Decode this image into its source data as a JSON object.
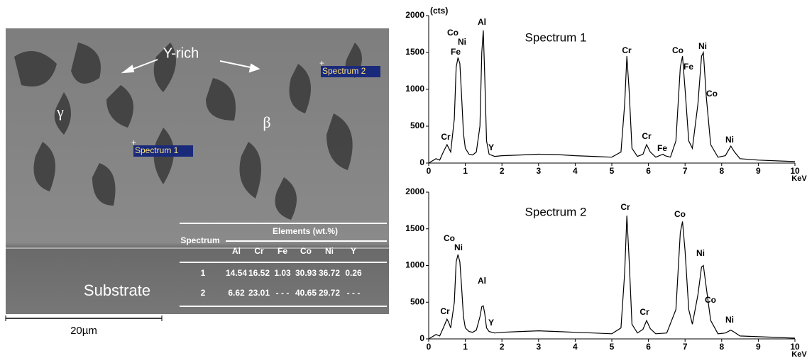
{
  "image": {
    "labels": {
      "y_rich": "Y-rich",
      "gamma": "γ",
      "beta": "β",
      "spectrum1": "Spectrum 1",
      "spectrum2": "Spectrum 2",
      "substrate": "Substrate"
    },
    "scale_bar": "20µm"
  },
  "table": {
    "header": "Elements (wt.%)",
    "row_header": "Spectrum",
    "columns": [
      "Al",
      "Cr",
      "Fe",
      "Co",
      "Ni",
      "Y"
    ],
    "rows": [
      [
        "1",
        14.54,
        16.52,
        1.03,
        30.93,
        36.72,
        0.26
      ],
      [
        "2",
        6.62,
        23.01,
        "- - -",
        40.65,
        29.72,
        "- - -"
      ]
    ]
  },
  "chart_data": [
    {
      "type": "line",
      "title": "Spectrum 1",
      "y_label": "(cts)",
      "x_label": "KeV",
      "color": "#000000",
      "xlim": [
        0,
        10
      ],
      "xticks": [
        0,
        1,
        2,
        3,
        4,
        5,
        6,
        7,
        8,
        9,
        10
      ],
      "ylim": [
        0,
        2000
      ],
      "yticks": [
        0,
        500,
        1000,
        1500,
        2000
      ],
      "annotations": [
        "Co",
        "Ni",
        "Fe",
        "Al",
        "Cr",
        "Y",
        "Cr",
        "Cr",
        "Fe",
        "Co",
        "Fe",
        "Ni",
        "Co",
        "Ni"
      ],
      "x": [
        0,
        0.1,
        0.2,
        0.3,
        0.4,
        0.5,
        0.55,
        0.6,
        0.7,
        0.75,
        0.8,
        0.85,
        0.9,
        0.95,
        1.0,
        1.1,
        1.2,
        1.3,
        1.4,
        1.45,
        1.49,
        1.53,
        1.58,
        1.65,
        1.8,
        2,
        2.5,
        3,
        3.5,
        4,
        4.5,
        5,
        5.25,
        5.35,
        5.41,
        5.47,
        5.55,
        5.7,
        5.85,
        5.95,
        6.05,
        6.2,
        6.4,
        6.45,
        6.6,
        6.75,
        6.87,
        6.93,
        7.0,
        7.1,
        7.2,
        7.35,
        7.45,
        7.5,
        7.58,
        7.7,
        7.9,
        8.1,
        8.25,
        8.35,
        8.5,
        9,
        9.5,
        10
      ],
      "values": [
        0,
        30,
        60,
        40,
        150,
        250,
        200,
        150,
        600,
        1300,
        1430,
        1350,
        900,
        400,
        200,
        120,
        110,
        150,
        500,
        1500,
        1800,
        1200,
        300,
        120,
        90,
        100,
        110,
        120,
        115,
        100,
        90,
        80,
        150,
        800,
        1450,
        1000,
        200,
        90,
        120,
        250,
        150,
        80,
        120,
        100,
        80,
        300,
        1300,
        1450,
        1000,
        300,
        200,
        800,
        1450,
        1500,
        900,
        250,
        80,
        100,
        230,
        150,
        60,
        40,
        30,
        20
      ]
    },
    {
      "type": "line",
      "title": "Spectrum 2",
      "x_label": "KeV",
      "color": "#000000",
      "xlim": [
        0,
        10
      ],
      "xticks": [
        0,
        1,
        2,
        3,
        4,
        5,
        6,
        7,
        8,
        9,
        10
      ],
      "ylim": [
        0,
        2000
      ],
      "yticks": [
        0,
        500,
        1000,
        1500,
        2000
      ],
      "annotations": [
        "Co",
        "Ni",
        "Al",
        "Cr",
        "Y",
        "Cr",
        "Cr",
        "Co",
        "Ni",
        "Co",
        "Ni"
      ],
      "x": [
        0,
        0.1,
        0.2,
        0.3,
        0.4,
        0.5,
        0.55,
        0.6,
        0.7,
        0.75,
        0.8,
        0.85,
        0.9,
        0.95,
        1.0,
        1.1,
        1.2,
        1.3,
        1.4,
        1.45,
        1.49,
        1.53,
        1.58,
        1.65,
        1.8,
        2,
        2.5,
        3,
        3.5,
        4,
        4.5,
        5,
        5.25,
        5.35,
        5.41,
        5.47,
        5.55,
        5.7,
        5.85,
        5.95,
        6.05,
        6.2,
        6.5,
        6.75,
        6.87,
        6.93,
        7.0,
        7.1,
        7.2,
        7.35,
        7.45,
        7.5,
        7.58,
        7.7,
        7.9,
        8.1,
        8.25,
        8.35,
        8.5,
        9,
        9.5,
        10
      ],
      "values": [
        0,
        30,
        60,
        40,
        150,
        270,
        220,
        150,
        500,
        1050,
        1150,
        1050,
        700,
        300,
        150,
        100,
        90,
        120,
        300,
        440,
        450,
        350,
        150,
        100,
        80,
        90,
        100,
        110,
        100,
        90,
        80,
        70,
        150,
        900,
        1680,
        1100,
        200,
        80,
        130,
        250,
        140,
        70,
        80,
        400,
        1450,
        1600,
        1200,
        400,
        200,
        600,
        980,
        1000,
        700,
        250,
        70,
        80,
        120,
        90,
        40,
        30,
        20,
        10
      ]
    }
  ]
}
